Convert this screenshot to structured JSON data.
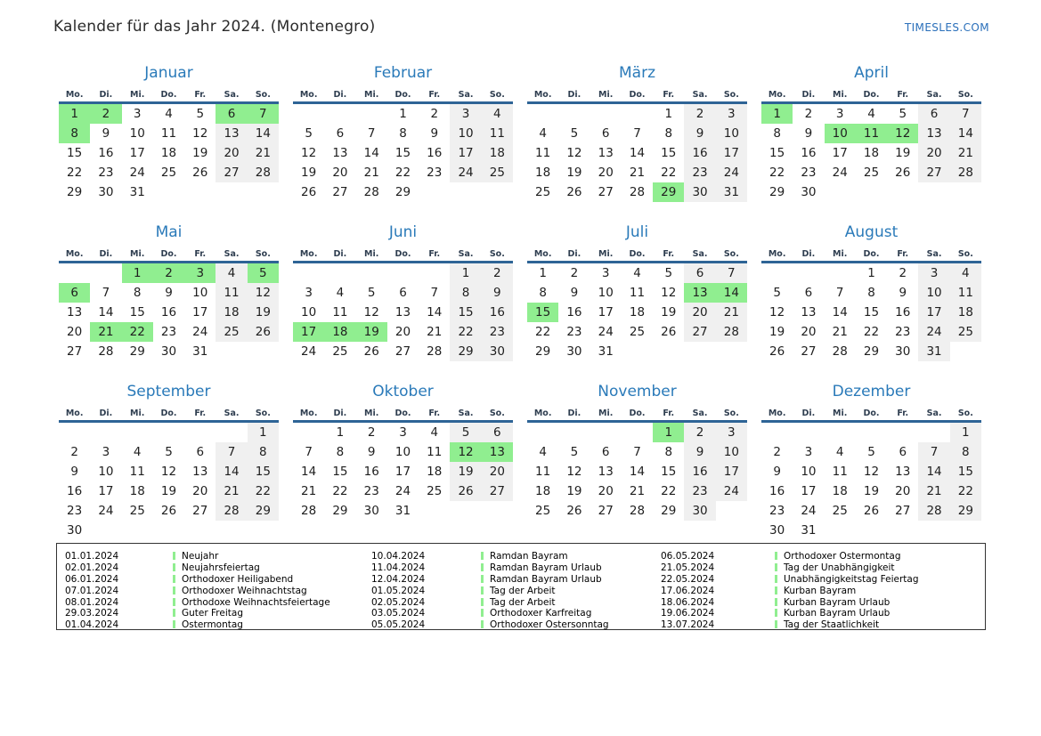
{
  "page": {
    "title": "Kalender für das Jahr 2024. (Montenegro)",
    "site": "TIMESLES.COM"
  },
  "colors": {
    "accent_blue": "#2a7ab9",
    "header_line_blue": "#2e6496",
    "link_blue": "#2a6fba",
    "holiday_green": "#90ee90",
    "weekend_gray": "#f0f0f0"
  },
  "weekdays": [
    "Mo.",
    "Di.",
    "Mi.",
    "Do.",
    "Fr.",
    "Sa.",
    "So."
  ],
  "months": [
    {
      "name": "Januar",
      "start": 0,
      "days": 31,
      "holidays": [
        1,
        2,
        6,
        7,
        8
      ]
    },
    {
      "name": "Februar",
      "start": 3,
      "days": 29,
      "holidays": []
    },
    {
      "name": "März",
      "start": 4,
      "days": 31,
      "holidays": [
        29
      ]
    },
    {
      "name": "April",
      "start": 0,
      "days": 30,
      "holidays": [
        1,
        10,
        11,
        12
      ]
    },
    {
      "name": "Mai",
      "start": 2,
      "days": 31,
      "holidays": [
        1,
        2,
        3,
        5,
        6,
        21,
        22
      ]
    },
    {
      "name": "Juni",
      "start": 5,
      "days": 30,
      "holidays": [
        17,
        18,
        19
      ]
    },
    {
      "name": "Juli",
      "start": 0,
      "days": 31,
      "holidays": [
        13,
        14,
        15
      ]
    },
    {
      "name": "August",
      "start": 3,
      "days": 31,
      "holidays": []
    },
    {
      "name": "September",
      "start": 6,
      "days": 30,
      "holidays": []
    },
    {
      "name": "Oktober",
      "start": 1,
      "days": 31,
      "holidays": [
        12,
        13
      ]
    },
    {
      "name": "November",
      "start": 4,
      "days": 30,
      "holidays": [
        1
      ]
    },
    {
      "name": "Dezember",
      "start": 6,
      "days": 31,
      "holidays": []
    }
  ],
  "legend": {
    "groups": [
      [
        {
          "date": "01.01.2024",
          "name": "Neujahr"
        },
        {
          "date": "02.01.2024",
          "name": "Neujahrsfeiertag"
        },
        {
          "date": "06.01.2024",
          "name": "Orthodoxer Heiligabend"
        },
        {
          "date": "07.01.2024",
          "name": "Orthodoxer Weihnachtstag"
        },
        {
          "date": "08.01.2024",
          "name": "Orthodoxe Weihnachtsfeiertage"
        },
        {
          "date": "29.03.2024",
          "name": "Guter Freitag"
        },
        {
          "date": "01.04.2024",
          "name": "Ostermontag"
        }
      ],
      [
        {
          "date": "10.04.2024",
          "name": "Ramdan Bayram"
        },
        {
          "date": "11.04.2024",
          "name": "Ramdan Bayram Urlaub"
        },
        {
          "date": "12.04.2024",
          "name": "Ramdan Bayram Urlaub"
        },
        {
          "date": "01.05.2024",
          "name": "Tag der Arbeit"
        },
        {
          "date": "02.05.2024",
          "name": "Tag der Arbeit"
        },
        {
          "date": "03.05.2024",
          "name": "Orthodoxer Karfreitag"
        },
        {
          "date": "05.05.2024",
          "name": "Orthodoxer Ostersonntag"
        }
      ],
      [
        {
          "date": "06.05.2024",
          "name": "Orthodoxer Ostermontag"
        },
        {
          "date": "21.05.2024",
          "name": "Tag der Unabhängigkeit"
        },
        {
          "date": "22.05.2024",
          "name": "Unabhängigkeitstag Feiertag"
        },
        {
          "date": "17.06.2024",
          "name": "Kurban Bayram"
        },
        {
          "date": "18.06.2024",
          "name": "Kurban Bayram Urlaub"
        },
        {
          "date": "19.06.2024",
          "name": "Kurban Bayram Urlaub"
        },
        {
          "date": "13.07.2024",
          "name": "Tag der Staatlichkeit"
        }
      ]
    ]
  }
}
